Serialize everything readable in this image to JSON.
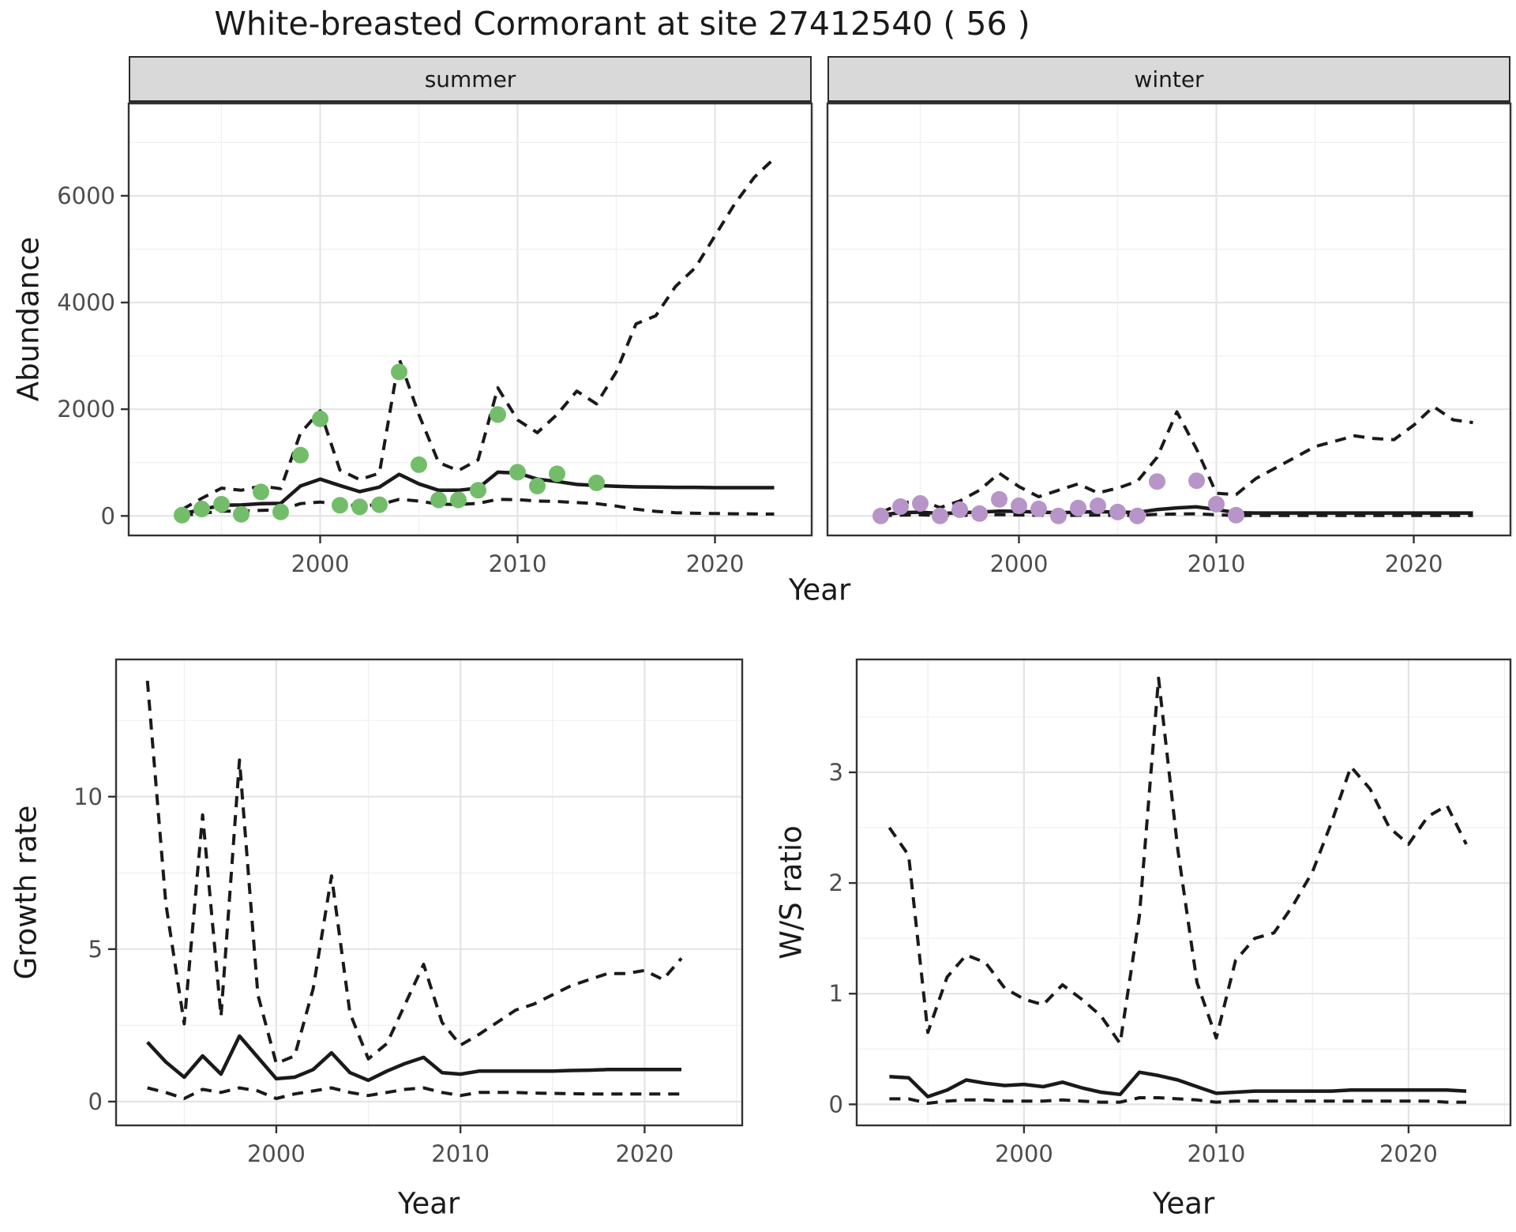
{
  "title": "White-breasted Cormorant at site 27412540 ( 56 )",
  "facets": {
    "summer": "summer",
    "winter": "winter"
  },
  "axes": {
    "abundance": "Abundance",
    "year": "Year",
    "growth": "Growth rate",
    "ws": "W/S ratio"
  },
  "style": {
    "summer_point_color": "#73BD6A",
    "winter_point_color": "#B795C8",
    "line_color": "#1A1A1A",
    "grid_major_color": "#E4E4E4",
    "grid_minor_color": "#F0F0F0",
    "panel_border_color": "#333333",
    "strip_bg_color": "#D9D9D9",
    "axis_text_color": "#4D4D4D",
    "panel_bg_color": "#FFFFFF"
  },
  "chart_data": {
    "abundance_summer": {
      "type": "line",
      "facet_label": "summer",
      "xlabel": "Year",
      "ylabel": "Abundance",
      "xlim": [
        1990.3,
        2024.9
      ],
      "ylim": [
        -366,
        7731
      ],
      "xticks": {
        "major": [
          2000,
          2010,
          2020
        ],
        "minor": [
          1995,
          2005,
          2015,
          2025
        ]
      },
      "yticks": {
        "major": [
          0,
          2000,
          4000,
          6000
        ],
        "minor": [
          1000,
          3000,
          5000,
          7000
        ]
      },
      "xtick_labels": [
        "2000",
        "2010",
        "2020"
      ],
      "ytick_labels": [
        "0",
        "2000",
        "4000",
        "6000"
      ],
      "x_years": [
        1993,
        1994,
        1995,
        1996,
        1997,
        1998,
        1999,
        2000,
        2001,
        2002,
        2003,
        2004,
        2005,
        2006,
        2007,
        2008,
        2009,
        2010,
        2011,
        2012,
        2013,
        2014,
        2015,
        2016,
        2017,
        2018,
        2019,
        2020,
        2021,
        2022,
        2023
      ],
      "series": [
        {
          "name": "model_median",
          "style": "solid",
          "values": [
            40,
            120,
            200,
            205,
            230,
            235,
            560,
            690,
            570,
            455,
            540,
            780,
            600,
            480,
            480,
            520,
            820,
            805,
            690,
            645,
            590,
            570,
            555,
            545,
            540,
            535,
            535,
            530,
            530,
            530,
            530
          ]
        },
        {
          "name": "ci_upper",
          "style": "dashed",
          "values": [
            120,
            330,
            520,
            480,
            560,
            510,
            1550,
            1970,
            860,
            680,
            800,
            2950,
            1900,
            1000,
            850,
            1050,
            2400,
            1800,
            1560,
            1900,
            2340,
            2100,
            2700,
            3600,
            3750,
            4300,
            4650,
            5250,
            5850,
            6350,
            6700
          ]
        },
        {
          "name": "ci_lower",
          "style": "dashed",
          "values": [
            10,
            45,
            90,
            90,
            105,
            110,
            230,
            260,
            215,
            190,
            210,
            310,
            280,
            220,
            215,
            235,
            310,
            305,
            280,
            270,
            250,
            230,
            185,
            125,
            85,
            60,
            50,
            45,
            40,
            38,
            35
          ]
        }
      ],
      "points": {
        "name": "observed_counts",
        "color": "#73BD6A",
        "years": [
          1993,
          1994,
          1995,
          1996,
          1997,
          1998,
          1999,
          2000,
          2001,
          2002,
          2003,
          2004,
          2005,
          2006,
          2007,
          2008,
          2009,
          2010,
          2011,
          2012,
          2014
        ],
        "values": [
          15,
          130,
          220,
          30,
          450,
          75,
          1140,
          1820,
          200,
          170,
          210,
          2700,
          960,
          300,
          300,
          480,
          1900,
          820,
          560,
          790,
          620
        ]
      }
    },
    "abundance_winter": {
      "type": "line",
      "facet_label": "winter",
      "xlabel": "Year",
      "ylabel": "Abundance",
      "xlim": [
        1990.3,
        2024.9
      ],
      "ylim": [
        -366,
        7731
      ],
      "xticks": {
        "major": [
          2000,
          2010,
          2020
        ],
        "minor": [
          1995,
          2005,
          2015,
          2025
        ]
      },
      "yticks": {
        "major": [
          0,
          2000,
          4000,
          6000
        ],
        "minor": [
          1000,
          3000,
          5000,
          7000
        ]
      },
      "xtick_labels": [
        "2000",
        "2010",
        "2020"
      ],
      "ytick_labels": [],
      "x_years": [
        1993,
        1994,
        1995,
        1996,
        1997,
        1998,
        1999,
        2000,
        2001,
        2002,
        2003,
        2004,
        2005,
        2006,
        2007,
        2008,
        2009,
        2010,
        2011,
        2012,
        2013,
        2014,
        2015,
        2016,
        2017,
        2018,
        2019,
        2020,
        2021,
        2022,
        2023
      ],
      "series": [
        {
          "name": "model_median",
          "style": "solid",
          "values": [
            20,
            60,
            70,
            45,
            60,
            70,
            90,
            85,
            70,
            60,
            70,
            80,
            70,
            65,
            120,
            150,
            170,
            120,
            60,
            55,
            55,
            55,
            55,
            55,
            55,
            55,
            55,
            55,
            55,
            55,
            55
          ]
        },
        {
          "name": "ci_upper",
          "style": "dashed",
          "values": [
            60,
            230,
            300,
            155,
            280,
            480,
            800,
            550,
            360,
            480,
            600,
            430,
            520,
            650,
            1100,
            1950,
            1250,
            425,
            400,
            700,
            900,
            1100,
            1300,
            1400,
            1500,
            1450,
            1430,
            1700,
            2050,
            1800,
            1750
          ]
        },
        {
          "name": "ci_lower",
          "style": "dashed",
          "values": [
            5,
            15,
            20,
            5,
            12,
            10,
            25,
            18,
            12,
            8,
            12,
            15,
            10,
            8,
            30,
            35,
            40,
            20,
            8,
            8,
            8,
            8,
            8,
            8,
            8,
            8,
            8,
            8,
            8,
            8,
            8
          ]
        }
      ],
      "points": {
        "name": "observed_counts",
        "color": "#B795C8",
        "years": [
          1993,
          1994,
          1995,
          1996,
          1997,
          1998,
          1999,
          2000,
          2001,
          2002,
          2003,
          2004,
          2005,
          2006,
          2007,
          2009,
          2010,
          2011
        ],
        "values": [
          0,
          175,
          235,
          0,
          117,
          44,
          310,
          190,
          132,
          0,
          147,
          190,
          73,
          0,
          645,
          660,
          220,
          15
        ]
      }
    },
    "growth_rate": {
      "type": "line",
      "xlabel": "Year",
      "ylabel": "Growth rate",
      "xlim": [
        1991.3,
        2025.3
      ],
      "ylim": [
        -0.78,
        14.5
      ],
      "xticks": {
        "major": [
          2000,
          2010,
          2020
        ],
        "minor": [
          1995,
          2005,
          2015,
          2025
        ]
      },
      "yticks": {
        "major": [
          0,
          5,
          10
        ],
        "minor": [
          2.5,
          7.5,
          12.5
        ]
      },
      "xtick_labels": [
        "2000",
        "2010",
        "2020"
      ],
      "ytick_labels": [
        "0",
        "5",
        "10"
      ],
      "x_years": [
        1993,
        1994,
        1995,
        1996,
        1997,
        1998,
        1999,
        2000,
        2001,
        2002,
        2003,
        2004,
        2005,
        2006,
        2007,
        2008,
        2009,
        2010,
        2011,
        2012,
        2013,
        2014,
        2015,
        2016,
        2017,
        2018,
        2019,
        2020,
        2021,
        2022
      ],
      "series": [
        {
          "name": "model_median",
          "style": "solid",
          "values": [
            1.95,
            1.3,
            0.8,
            1.5,
            0.9,
            2.15,
            1.45,
            0.75,
            0.8,
            1.05,
            1.6,
            0.95,
            0.7,
            1.0,
            1.25,
            1.45,
            0.95,
            0.9,
            1.0,
            1.0,
            1.0,
            1.0,
            1.0,
            1.02,
            1.03,
            1.05,
            1.05,
            1.05,
            1.05,
            1.05
          ]
        },
        {
          "name": "ci_upper",
          "style": "dashed",
          "values": [
            13.8,
            6.5,
            2.55,
            9.4,
            2.8,
            11.2,
            3.5,
            1.25,
            1.5,
            3.7,
            7.4,
            2.9,
            1.4,
            1.9,
            3.2,
            4.5,
            2.6,
            1.85,
            2.2,
            2.6,
            3.0,
            3.2,
            3.5,
            3.8,
            4.0,
            4.2,
            4.2,
            4.3,
            4.0,
            4.7
          ]
        },
        {
          "name": "ci_lower",
          "style": "dashed",
          "values": [
            0.45,
            0.3,
            0.1,
            0.4,
            0.3,
            0.45,
            0.35,
            0.1,
            0.25,
            0.35,
            0.45,
            0.3,
            0.2,
            0.3,
            0.4,
            0.45,
            0.3,
            0.2,
            0.3,
            0.3,
            0.3,
            0.28,
            0.27,
            0.26,
            0.25,
            0.25,
            0.25,
            0.25,
            0.25,
            0.25
          ]
        }
      ],
      "points": null
    },
    "ws_ratio": {
      "type": "line",
      "xlabel": "Year",
      "ylabel": "W/S ratio",
      "xlim": [
        1991.3,
        2025.3
      ],
      "ylim": [
        -0.19,
        4.02
      ],
      "xticks": {
        "major": [
          2000,
          2010,
          2020
        ],
        "minor": [
          1995,
          2005,
          2015,
          2025
        ]
      },
      "yticks": {
        "major": [
          0,
          1,
          2,
          3
        ],
        "minor": [
          0.5,
          1.5,
          2.5,
          3.5
        ]
      },
      "xtick_labels": [
        "2000",
        "2010",
        "2020"
      ],
      "ytick_labels": [
        "0",
        "1",
        "2",
        "3"
      ],
      "x_years": [
        1993,
        1994,
        1995,
        1996,
        1997,
        1998,
        1999,
        2000,
        2001,
        2002,
        2003,
        2004,
        2005,
        2006,
        2007,
        2008,
        2009,
        2010,
        2011,
        2012,
        2013,
        2014,
        2015,
        2016,
        2017,
        2018,
        2019,
        2020,
        2021,
        2022,
        2023
      ],
      "series": [
        {
          "name": "model_median",
          "style": "solid",
          "values": [
            0.25,
            0.24,
            0.07,
            0.13,
            0.22,
            0.19,
            0.17,
            0.18,
            0.16,
            0.2,
            0.15,
            0.11,
            0.09,
            0.29,
            0.26,
            0.22,
            0.16,
            0.1,
            0.11,
            0.12,
            0.12,
            0.12,
            0.12,
            0.12,
            0.13,
            0.13,
            0.13,
            0.13,
            0.13,
            0.13,
            0.12
          ]
        },
        {
          "name": "ci_upper",
          "style": "dashed",
          "values": [
            2.5,
            2.25,
            0.65,
            1.15,
            1.35,
            1.28,
            1.05,
            0.95,
            0.9,
            1.08,
            0.95,
            0.8,
            0.55,
            1.7,
            3.85,
            2.3,
            1.1,
            0.6,
            1.3,
            1.5,
            1.55,
            1.8,
            2.1,
            2.55,
            3.05,
            2.85,
            2.5,
            2.35,
            2.6,
            2.7,
            2.35
          ]
        },
        {
          "name": "ci_lower",
          "style": "dashed",
          "values": [
            0.05,
            0.05,
            0.01,
            0.03,
            0.04,
            0.04,
            0.03,
            0.03,
            0.03,
            0.04,
            0.03,
            0.02,
            0.02,
            0.06,
            0.06,
            0.05,
            0.04,
            0.02,
            0.03,
            0.03,
            0.03,
            0.03,
            0.03,
            0.03,
            0.03,
            0.03,
            0.03,
            0.03,
            0.03,
            0.02,
            0.02
          ]
        }
      ],
      "points": null
    }
  }
}
